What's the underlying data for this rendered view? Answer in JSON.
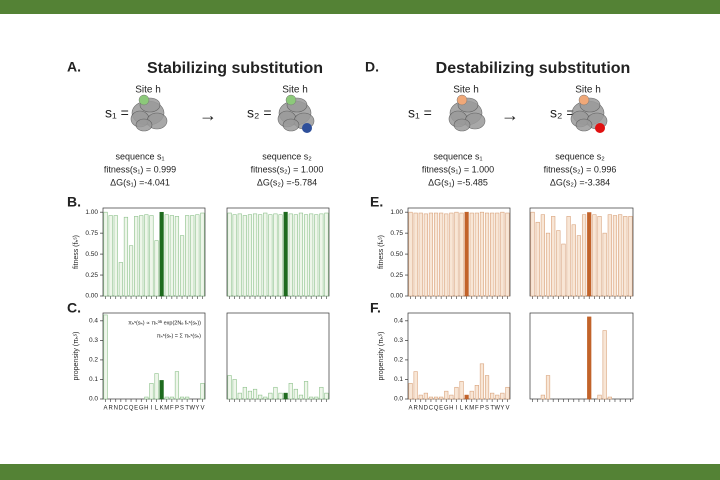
{
  "panels": [
    {
      "label": "A.",
      "title": "Stabilizing substitution",
      "title_color": "#5b8c3a",
      "site_color": "#8cc97a",
      "mutation_color": "#2e4f9a",
      "states": [
        {
          "symbol": "s₁ =",
          "site": "Site h",
          "lines": [
            "sequence s₁",
            "fitness(s₁) = 0.999",
            "ΔG(s₁) =-4.041"
          ]
        },
        {
          "symbol": "s₂ =",
          "site": "Site h",
          "lines": [
            "sequence s₂",
            "fitness(s₂) = 1.000",
            "ΔG(s₂) =-5.784"
          ]
        }
      ]
    },
    {
      "label": "D.",
      "title": "Destabilizing substitution",
      "title_color": "#d2691e",
      "site_color": "#f0a878",
      "mutation_color": "#e01010",
      "states": [
        {
          "symbol": "s₁ =",
          "site": "Site h",
          "lines": [
            "sequence s₁",
            "fitness(s₁) = 1.000",
            "ΔG(s₁) =-5.485"
          ]
        },
        {
          "symbol": "s₂ =",
          "site": "Site h",
          "lines": [
            "sequence s₂",
            "fitness(s₂) = 0.996",
            "ΔG(s₂) =-3.384"
          ]
        }
      ]
    }
  ],
  "chart_labels": [
    "B.",
    "C.",
    "E.",
    "F."
  ],
  "chart_data": [
    {
      "type": "bar",
      "ylabel": "fitness (fₕˢ)",
      "ylim": [
        0,
        1.05
      ],
      "yticks": [
        {
          "value": 0,
          "label": "0.00"
        },
        0.25,
        {
          "value": 0.5,
          "label": "0.50"
        },
        0.75,
        {
          "value": 1,
          "label": "1.00"
        }
      ],
      "fill_color": "#eef6ea",
      "edge_color": "#8cc08a",
      "highlight_color": "#1e6b1e",
      "highlight_index": 11,
      "values": [
        1.0,
        0.96,
        0.96,
        0.4,
        0.94,
        0.6,
        0.95,
        0.96,
        0.97,
        0.96,
        0.66,
        0.999,
        0.97,
        0.96,
        0.95,
        0.72,
        0.96,
        0.96,
        0.97,
        0.99
      ]
    },
    {
      "type": "bar",
      "ylim": [
        0,
        1.05
      ],
      "fill_color": "#eef6ea",
      "edge_color": "#8cc08a",
      "highlight_color": "#1e6b1e",
      "highlight_index": 11,
      "values": [
        0.99,
        0.97,
        0.98,
        0.96,
        0.97,
        0.98,
        0.97,
        0.99,
        0.97,
        0.98,
        0.97,
        1.0,
        0.98,
        0.97,
        0.99,
        0.97,
        0.98,
        0.97,
        0.98,
        0.99
      ]
    },
    {
      "type": "bar",
      "ylabel": "propensity (πₕˢ)",
      "ylim": [
        0,
        0.44
      ],
      "yticks": [
        {
          "value": 0,
          "label": "0.0"
        },
        0.1,
        0.2,
        0.3,
        0.4
      ],
      "categories": [
        "A",
        "R",
        "N",
        "D",
        "C",
        "Q",
        "E",
        "G",
        "H",
        "I",
        "L",
        "K",
        "M",
        "F",
        "P",
        "S",
        "T",
        "W",
        "Y",
        "V"
      ],
      "annotations": [
        "πₕˢ(sₕ) ∝ πₕ⁰ᴮ exp(2Nₑ fₕˢ(sₕ))",
        "πₕˢ(sₕ) = Σ πₕˢ(sₕ)"
      ],
      "fill_color": "#eef6ea",
      "edge_color": "#8cc08a",
      "highlight_color": "#1e6b1e",
      "highlight_index": 11,
      "values": [
        0.43,
        0,
        0,
        0,
        0,
        0,
        0,
        0,
        0.01,
        0.08,
        0.13,
        0.095,
        0.01,
        0.01,
        0.14,
        0.01,
        0.01,
        0,
        0,
        0.08
      ]
    },
    {
      "type": "bar",
      "ylim": [
        0,
        0.44
      ],
      "fill_color": "#eef6ea",
      "edge_color": "#8cc08a",
      "highlight_color": "#1e6b1e",
      "highlight_index": 11,
      "values": [
        0.12,
        0.1,
        0.03,
        0.06,
        0.04,
        0.05,
        0.02,
        0.01,
        0.03,
        0.06,
        0.03,
        0.03,
        0.08,
        0.05,
        0.02,
        0.09,
        0.01,
        0.01,
        0.06,
        0.03
      ]
    },
    {
      "type": "bar",
      "ylabel": "fitness (fₕˢ)",
      "ylim": [
        0,
        1.05
      ],
      "yticks": [
        {
          "value": 0,
          "label": "0.00"
        },
        0.25,
        {
          "value": 0.5,
          "label": "0.50"
        },
        0.75,
        {
          "value": 1,
          "label": "1.00"
        }
      ],
      "fill_color": "#f8e6d6",
      "edge_color": "#d9a37c",
      "highlight_color": "#c2632a",
      "highlight_index": 11,
      "values": [
        1.0,
        0.99,
        0.99,
        0.98,
        0.99,
        0.99,
        0.99,
        0.98,
        0.99,
        1.0,
        0.99,
        1.0,
        0.99,
        0.99,
        1.0,
        0.99,
        0.99,
        0.99,
        1.0,
        0.99
      ]
    },
    {
      "type": "bar",
      "ylim": [
        0,
        1.05
      ],
      "fill_color": "#f8e6d6",
      "edge_color": "#d9a37c",
      "highlight_color": "#c2632a",
      "highlight_index": 11,
      "values": [
        1.0,
        0.88,
        0.97,
        0.75,
        0.95,
        0.78,
        0.62,
        0.95,
        0.85,
        0.72,
        0.97,
        0.996,
        0.97,
        0.95,
        0.75,
        0.97,
        0.96,
        0.97,
        0.95,
        0.95
      ]
    },
    {
      "type": "bar",
      "ylabel": "propensity (πₕˢ)",
      "ylim": [
        0,
        0.44
      ],
      "yticks": [
        {
          "value": 0,
          "label": "0.0"
        },
        0.1,
        0.2,
        0.3,
        0.4
      ],
      "categories": [
        "A",
        "R",
        "N",
        "D",
        "C",
        "Q",
        "E",
        "G",
        "H",
        "I",
        "L",
        "K",
        "M",
        "F",
        "P",
        "S",
        "T",
        "W",
        "Y",
        "V"
      ],
      "fill_color": "#f8e6d6",
      "edge_color": "#d9a37c",
      "highlight_color": "#c2632a",
      "highlight_index": 11,
      "values": [
        0.08,
        0.14,
        0.02,
        0.03,
        0.01,
        0.01,
        0.01,
        0.04,
        0.02,
        0.06,
        0.09,
        0.02,
        0.04,
        0.07,
        0.18,
        0.12,
        0.03,
        0.02,
        0.03,
        0.06
      ]
    },
    {
      "type": "bar",
      "ylim": [
        0,
        0.44
      ],
      "fill_color": "#f8e6d6",
      "edge_color": "#d9a37c",
      "highlight_color": "#c2632a",
      "highlight_index": 11,
      "values": [
        0,
        0,
        0.02,
        0.12,
        0,
        0,
        0,
        0,
        0,
        0,
        0,
        0.42,
        0,
        0.02,
        0.35,
        0.01,
        0,
        0,
        0,
        0
      ]
    }
  ]
}
